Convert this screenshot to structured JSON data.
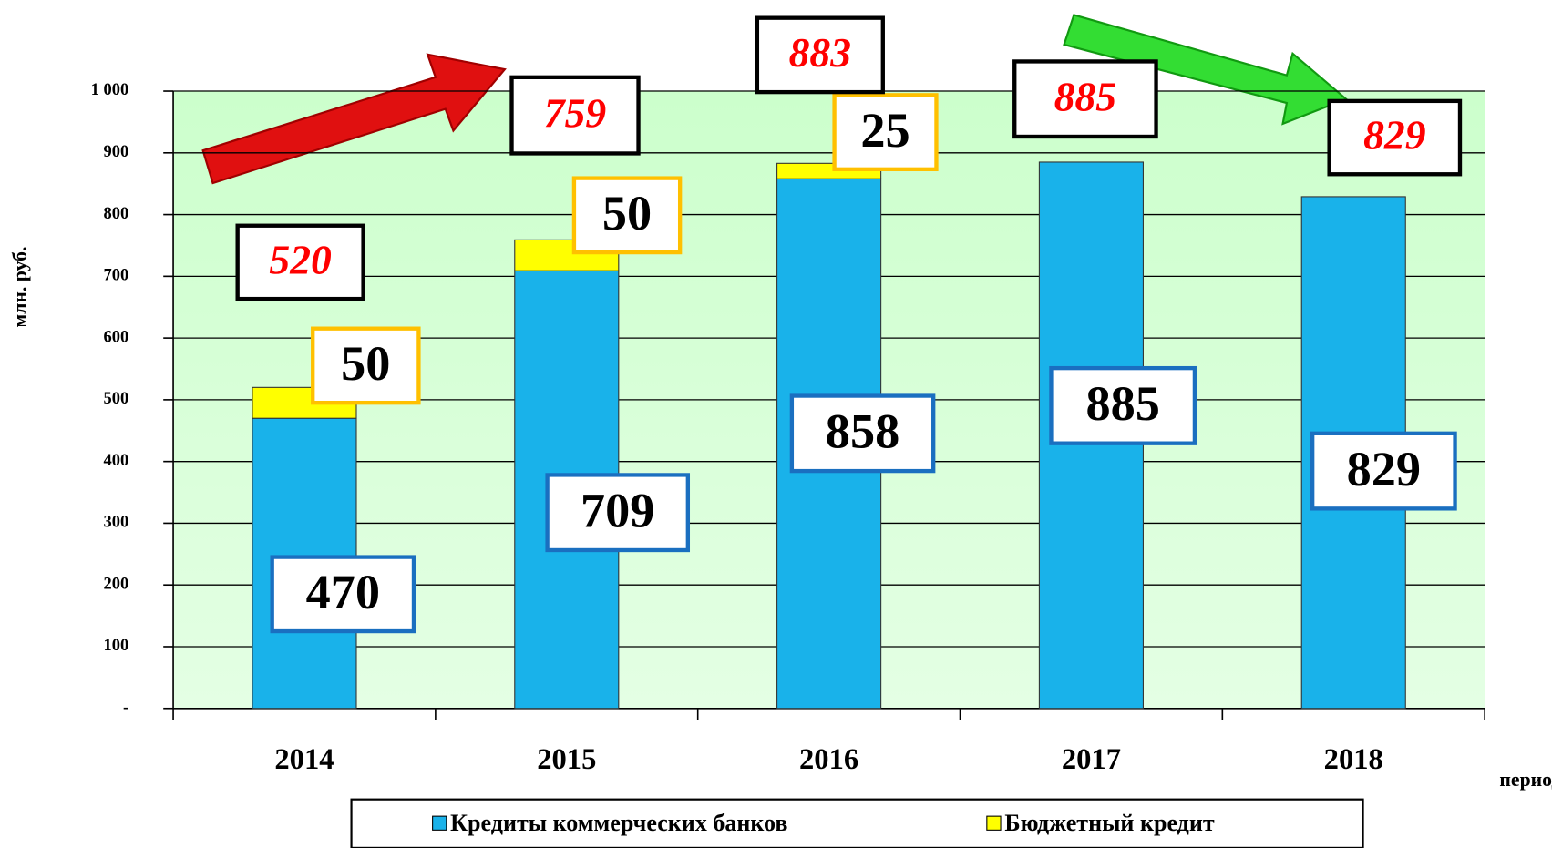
{
  "chart_data": {
    "type": "stacked-bar",
    "y_label": "млн. руб.",
    "x_label": "период",
    "categories": [
      "2014",
      "2015",
      "2016",
      "2017",
      "2018"
    ],
    "series": [
      {
        "name": "Кредиты коммерческих банков",
        "color": "#19b2ea",
        "values": [
          470,
          709,
          858,
          885,
          829
        ]
      },
      {
        "name": "Бюджетный кредит",
        "color": "#ffff00",
        "values": [
          50,
          50,
          25,
          null,
          null
        ]
      }
    ],
    "totals": [
      520,
      759,
      883,
      885,
      829
    ],
    "ylim": [
      0,
      1000
    ],
    "yticks": [
      {
        "value": 0,
        "label": "-"
      },
      100,
      200,
      300,
      400,
      500,
      600,
      700,
      800,
      900,
      {
        "value": 1000,
        "label": "1 000"
      }
    ],
    "grid": true,
    "legend": "bottom"
  }
}
